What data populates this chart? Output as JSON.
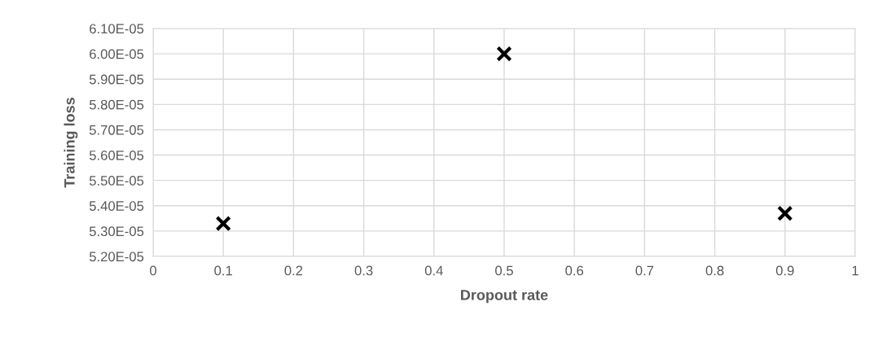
{
  "chart_data": {
    "type": "scatter",
    "xlabel": "Dropout rate",
    "ylabel": "Training loss",
    "x": [
      0.1,
      0.5,
      0.9
    ],
    "series": [
      {
        "color": "#000000",
        "values": [
          5.33e-05,
          6e-05,
          5.37e-05
        ]
      }
    ],
    "marker": "cross",
    "grid": true,
    "xlim": [
      0,
      1
    ],
    "xticks": [
      0,
      0.1,
      0.2,
      0.3,
      0.4,
      0.5,
      0.6,
      0.7,
      0.8,
      0.9,
      1
    ],
    "ylim": [
      5.2e-05,
      6.1e-05
    ],
    "yticks": [
      {
        "value": 5.2e-05,
        "label": "5.20E-05"
      },
      {
        "value": 5.3e-05,
        "label": "5.30E-05"
      },
      {
        "value": 5.4e-05,
        "label": "5.40E-05"
      },
      {
        "value": 5.5e-05,
        "label": "5.50E-05"
      },
      {
        "value": 5.6e-05,
        "label": "5.60E-05"
      },
      {
        "value": 5.7e-05,
        "label": "5.70E-05"
      },
      {
        "value": 5.8e-05,
        "label": "5.80E-05"
      },
      {
        "value": 5.9e-05,
        "label": "5.90E-05"
      },
      {
        "value": 6e-05,
        "label": "6.00E-05"
      },
      {
        "value": 6.1e-05,
        "label": "6.10E-05"
      }
    ]
  }
}
